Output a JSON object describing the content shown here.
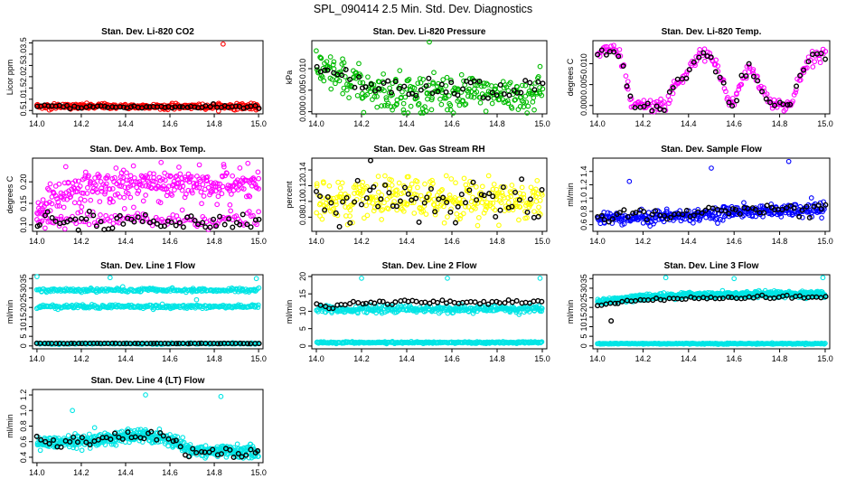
{
  "figure_title": "SPL_090414  2.5 Min. Std. Dev. Diagnostics",
  "colors": {
    "red": "#ff0000",
    "green": "#00bb00",
    "magenta": "#ff00ff",
    "yellow": "#ffff00",
    "blue": "#0000ff",
    "cyan": "#00e5e5",
    "black": "#000000"
  },
  "chart_data": [
    {
      "type": "scatter",
      "title": "Stan. Dev. Li-820 CO2",
      "ylabel": "Licor ppm",
      "xlim": [
        13.98,
        15.02
      ],
      "ylim": [
        0.35,
        3.6
      ],
      "xticks": [
        14.0,
        14.2,
        14.4,
        14.6,
        14.8,
        15.0
      ],
      "xticklabels": [
        "14.0",
        "14.2",
        "14.4",
        "14.6",
        "14.8",
        "15.0"
      ],
      "yticks": [
        0.5,
        1.0,
        1.5,
        2.0,
        2.5,
        3.0,
        3.5
      ],
      "yticklabels": [
        "0.5",
        "1.0",
        "1.5",
        "2.0",
        "2.5",
        "3.0",
        "3.5"
      ],
      "series": [
        {
          "name": "all",
          "color": "red",
          "n": 320,
          "bands": [
            {
              "mean": 0.68,
              "sd": 0.06
            }
          ],
          "outliers": [
            [
              14.84,
              3.45
            ]
          ]
        },
        {
          "name": "selected",
          "color": "black",
          "n": 60,
          "bands": [
            {
              "mean": 0.66,
              "sd": 0.04
            }
          ]
        }
      ]
    },
    {
      "type": "scatter",
      "title": "Stan. Dev. Li-820 Pressure",
      "ylabel": "kPa",
      "xlim": [
        13.98,
        15.02
      ],
      "ylim": [
        -0.0005,
        0.0165
      ],
      "xticks": [
        14.0,
        14.2,
        14.4,
        14.6,
        14.8,
        15.0
      ],
      "xticklabels": [
        "14.0",
        "14.2",
        "14.4",
        "14.6",
        "14.8",
        "15.0"
      ],
      "yticks": [
        0.0,
        0.005,
        0.01
      ],
      "yticklabels": [
        "0.000",
        "0.005",
        "0.010"
      ],
      "series": [
        {
          "name": "all",
          "color": "green",
          "n": 300,
          "curve": [
            [
              14.0,
              0.0095
            ],
            [
              14.1,
              0.008
            ],
            [
              14.2,
              0.0055
            ],
            [
              14.3,
              0.0045
            ],
            [
              14.4,
              0.0042
            ],
            [
              15.0,
              0.004
            ]
          ],
          "sd": 0.0022,
          "outliers": [
            [
              14.5,
              0.0162
            ],
            [
              14.02,
              0.0125
            ],
            [
              14.99,
              0.0105
            ]
          ]
        },
        {
          "name": "selected",
          "color": "black",
          "n": 55,
          "curve": [
            [
              14.0,
              0.0105
            ],
            [
              14.15,
              0.007
            ],
            [
              14.3,
              0.006
            ],
            [
              15.0,
              0.0055
            ]
          ],
          "sd": 0.0013
        }
      ]
    },
    {
      "type": "scatter",
      "title": "Stan. Dev. Li-820 Temp.",
      "ylabel": "degrees C",
      "xlim": [
        13.98,
        15.02
      ],
      "ylim": [
        -0.002,
        0.0155
      ],
      "xticks": [
        14.0,
        14.2,
        14.4,
        14.6,
        14.8,
        15.0
      ],
      "xticklabels": [
        "14.0",
        "14.2",
        "14.4",
        "14.6",
        "14.8",
        "15.0"
      ],
      "yticks": [
        0.0,
        0.005,
        0.01
      ],
      "yticklabels": [
        "0.000",
        "0.005",
        "0.010"
      ],
      "series": [
        {
          "name": "all",
          "color": "magenta",
          "n": 200,
          "curve": [
            [
              14.0,
              0.0125
            ],
            [
              14.08,
              0.014
            ],
            [
              14.12,
              0.008
            ],
            [
              14.15,
              0.0
            ],
            [
              14.3,
              0.0
            ],
            [
              14.33,
              0.004
            ],
            [
              14.4,
              0.008
            ],
            [
              14.45,
              0.013
            ],
            [
              14.5,
              0.0115
            ],
            [
              14.55,
              0.006
            ],
            [
              14.58,
              0.0
            ],
            [
              14.6,
              0.0
            ],
            [
              14.63,
              0.006
            ],
            [
              14.67,
              0.009
            ],
            [
              14.72,
              0.0035
            ],
            [
              14.77,
              0.0
            ],
            [
              14.85,
              0.0
            ],
            [
              14.88,
              0.006
            ],
            [
              14.93,
              0.011
            ],
            [
              15.0,
              0.0125
            ]
          ],
          "sd": 0.0008
        },
        {
          "name": "selected",
          "color": "black",
          "n": 55,
          "curve": [
            [
              14.0,
              0.0125
            ],
            [
              14.08,
              0.013
            ],
            [
              14.12,
              0.008
            ],
            [
              14.15,
              0.0
            ],
            [
              14.3,
              0.0
            ],
            [
              14.33,
              0.004
            ],
            [
              14.4,
              0.008
            ],
            [
              14.45,
              0.0125
            ],
            [
              14.5,
              0.011
            ],
            [
              14.55,
              0.006
            ],
            [
              14.58,
              0.0
            ],
            [
              14.6,
              0.0
            ],
            [
              14.63,
              0.006
            ],
            [
              14.67,
              0.009
            ],
            [
              14.72,
              0.0035
            ],
            [
              14.77,
              0.0
            ],
            [
              14.85,
              0.0
            ],
            [
              14.88,
              0.006
            ],
            [
              14.93,
              0.011
            ],
            [
              15.0,
              0.0125
            ]
          ],
          "sd": 0.0006
        }
      ]
    },
    {
      "type": "scatter",
      "title": "Stan. Dev. Amb. Box Temp.",
      "ylabel": "degrees C",
      "xlim": [
        13.98,
        15.02
      ],
      "ylim": [
        0.085,
        0.255
      ],
      "xticks": [
        14.0,
        14.2,
        14.4,
        14.6,
        14.8,
        15.0
      ],
      "xticklabels": [
        "14.0",
        "14.2",
        "14.4",
        "14.6",
        "14.8",
        "15.0"
      ],
      "yticks": [
        0.1,
        0.15,
        0.2
      ],
      "yticklabels": [
        "0.10",
        "0.15",
        "0.20"
      ],
      "series": [
        {
          "name": "all",
          "color": "magenta",
          "n": 320,
          "curve": [
            [
              14.0,
              0.14
            ],
            [
              14.1,
              0.165
            ],
            [
              14.25,
              0.19
            ],
            [
              14.5,
              0.195
            ],
            [
              15.0,
              0.19
            ]
          ],
          "sd": 0.018,
          "low_band": {
            "mean": 0.112,
            "sd": 0.01,
            "n": 120
          },
          "outliers": [
            [
              14.56,
              0.245
            ],
            [
              14.13,
              0.235
            ]
          ]
        },
        {
          "name": "selected",
          "color": "black",
          "n": 60,
          "bands": [
            {
              "mean": 0.108,
              "sd": 0.009
            }
          ]
        }
      ]
    },
    {
      "type": "scatter",
      "title": "Stan. Dev. Gas Stream RH",
      "ylabel": "percent",
      "xlim": [
        13.98,
        15.02
      ],
      "ylim": [
        0.062,
        0.155
      ],
      "xticks": [
        14.0,
        14.2,
        14.4,
        14.6,
        14.8,
        15.0
      ],
      "xticklabels": [
        "14.0",
        "14.2",
        "14.4",
        "14.6",
        "14.8",
        "15.0"
      ],
      "yticks": [
        0.08,
        0.1,
        0.12,
        0.14
      ],
      "yticklabels": [
        "0.08",
        "0.10",
        "0.12",
        "0.14"
      ],
      "series": [
        {
          "name": "all",
          "color": "yellow",
          "n": 320,
          "bands": [
            {
              "mean": 0.103,
              "sd": 0.014
            }
          ]
        },
        {
          "name": "selected",
          "color": "black",
          "n": 60,
          "bands": [
            {
              "mean": 0.101,
              "sd": 0.013
            }
          ],
          "outliers": [
            [
              14.24,
              0.152
            ]
          ]
        }
      ]
    },
    {
      "type": "scatter",
      "title": "Stan. Dev. Sample Flow",
      "ylabel": "ml/min",
      "xlim": [
        13.98,
        15.02
      ],
      "ylim": [
        0.5,
        1.6
      ],
      "xticks": [
        14.0,
        14.2,
        14.4,
        14.6,
        14.8,
        15.0
      ],
      "xticklabels": [
        "14.0",
        "14.2",
        "14.4",
        "14.6",
        "14.8",
        "15.0"
      ],
      "yticks": [
        0.6,
        0.8,
        1.0,
        1.2,
        1.4
      ],
      "yticklabels": [
        "0.6",
        "0.8",
        "1.0",
        "1.2",
        "1.4"
      ],
      "series": [
        {
          "name": "all",
          "color": "blue",
          "n": 320,
          "curve": [
            [
              14.0,
              0.7
            ],
            [
              14.2,
              0.71
            ],
            [
              14.4,
              0.74
            ],
            [
              14.6,
              0.79
            ],
            [
              15.0,
              0.83
            ]
          ],
          "sd": 0.05,
          "outliers": [
            [
              14.5,
              1.45
            ],
            [
              14.84,
              1.55
            ],
            [
              14.14,
              1.25
            ]
          ]
        },
        {
          "name": "selected",
          "color": "black",
          "n": 60,
          "curve": [
            [
              14.0,
              0.72
            ],
            [
              14.2,
              0.74
            ],
            [
              14.4,
              0.77
            ],
            [
              14.6,
              0.82
            ],
            [
              15.0,
              0.86
            ]
          ],
          "sd": 0.05
        }
      ]
    },
    {
      "type": "scatter",
      "title": "Stan. Dev. Line 1 Flow",
      "ylabel": "ml/min",
      "xlim": [
        13.98,
        15.02
      ],
      "ylim": [
        -1.5,
        37
      ],
      "xticks": [
        14.0,
        14.2,
        14.4,
        14.6,
        14.8,
        15.0
      ],
      "xticklabels": [
        "14.0",
        "14.2",
        "14.4",
        "14.6",
        "14.8",
        "15.0"
      ],
      "yticks": [
        0,
        5,
        10,
        15,
        20,
        25,
        30,
        35
      ],
      "yticklabels": [
        "0",
        "5",
        "10",
        "15",
        "20",
        "25",
        "30",
        "35"
      ],
      "series": [
        {
          "name": "all",
          "color": "cyan",
          "n": 700,
          "bands": [
            {
              "mean": 29,
              "sd": 0.5
            },
            {
              "mean": 20.5,
              "sd": 0.5
            },
            {
              "mean": 1.2,
              "sd": 0.15
            }
          ],
          "outliers": [
            [
              14.0,
              36
            ],
            [
              14.33,
              35.5
            ],
            [
              14.99,
              35
            ],
            [
              14.72,
              24
            ]
          ]
        },
        {
          "name": "selected",
          "color": "black",
          "n": 60,
          "bands": [
            {
              "mean": 1.3,
              "sd": 0.05
            }
          ]
        }
      ]
    },
    {
      "type": "scatter",
      "title": "Stan. Dev. Line 2 Flow",
      "ylabel": "ml/min",
      "xlim": [
        13.98,
        15.02
      ],
      "ylim": [
        -0.8,
        20.5
      ],
      "xticks": [
        14.0,
        14.2,
        14.4,
        14.6,
        14.8,
        15.0
      ],
      "xticklabels": [
        "14.0",
        "14.2",
        "14.4",
        "14.6",
        "14.8",
        "15.0"
      ],
      "yticks": [
        0,
        5,
        10,
        15,
        20
      ],
      "yticklabels": [
        "0",
        "5",
        "10",
        "15",
        "20"
      ],
      "series": [
        {
          "name": "all",
          "color": "cyan",
          "n": 650,
          "bands": [
            {
              "mean": 10.6,
              "sd": 0.5
            },
            {
              "mean": 1.0,
              "sd": 0.12
            }
          ],
          "outliers": [
            [
              14.2,
              19.5
            ],
            [
              14.58,
              19.5
            ],
            [
              14.99,
              19.5
            ]
          ]
        },
        {
          "name": "selected",
          "color": "black",
          "n": 55,
          "curve": [
            [
              14.02,
              11.5
            ],
            [
              14.1,
              11.5
            ],
            [
              14.15,
              12.5
            ],
            [
              15.0,
              12.8
            ]
          ],
          "sd": 0.3
        }
      ]
    },
    {
      "type": "scatter",
      "title": "Stan. Dev. Line 3 Flow",
      "ylabel": "ml/min",
      "xlim": [
        13.98,
        15.02
      ],
      "ylim": [
        -1.5,
        37
      ],
      "xticks": [
        14.0,
        14.2,
        14.4,
        14.6,
        14.8,
        15.0
      ],
      "xticklabels": [
        "14.0",
        "14.2",
        "14.4",
        "14.6",
        "14.8",
        "15.0"
      ],
      "yticks": [
        0,
        5,
        10,
        15,
        20,
        25,
        30,
        35
      ],
      "yticklabels": [
        "0",
        "5",
        "10",
        "15",
        "20",
        "25",
        "30",
        "35"
      ],
      "series": [
        {
          "name": "all",
          "color": "cyan",
          "n": 650,
          "curve": [
            [
              14.0,
              23
            ],
            [
              14.1,
              24
            ],
            [
              14.2,
              25.5
            ],
            [
              14.4,
              26.5
            ],
            [
              15.0,
              27
            ]
          ],
          "sd": 0.7,
          "low_band": {
            "mean": 1.2,
            "sd": 0.15,
            "n": 250
          },
          "outliers": [
            [
              14.3,
              35.5
            ],
            [
              14.6,
              35
            ],
            [
              14.99,
              35.5
            ]
          ]
        },
        {
          "name": "selected",
          "color": "black",
          "n": 55,
          "curve": [
            [
              14.0,
              21
            ],
            [
              14.1,
              23
            ],
            [
              14.2,
              24
            ],
            [
              14.5,
              25
            ],
            [
              15.0,
              25.5
            ]
          ],
          "sd": 0.4,
          "outliers": [
            [
              14.06,
              13
            ]
          ]
        }
      ]
    },
    {
      "type": "scatter",
      "title": "Stan. Dev. Line 4 (LT) Flow",
      "ylabel": "ml/min",
      "xlim": [
        13.98,
        15.02
      ],
      "ylim": [
        0.33,
        1.27
      ],
      "xticks": [
        14.0,
        14.2,
        14.4,
        14.6,
        14.8,
        15.0
      ],
      "xticklabels": [
        "14.0",
        "14.2",
        "14.4",
        "14.6",
        "14.8",
        "15.0"
      ],
      "yticks": [
        0.4,
        0.6,
        0.8,
        1.0,
        1.2
      ],
      "yticklabels": [
        "0.4",
        "0.6",
        "0.8",
        "1.0",
        "1.2"
      ],
      "series": [
        {
          "name": "all",
          "color": "cyan",
          "n": 500,
          "curve": [
            [
              14.0,
              0.58
            ],
            [
              14.2,
              0.6
            ],
            [
              14.35,
              0.65
            ],
            [
              14.5,
              0.68
            ],
            [
              14.6,
              0.62
            ],
            [
              14.67,
              0.5
            ],
            [
              14.75,
              0.48
            ],
            [
              15.0,
              0.47
            ]
          ],
          "sd": 0.04,
          "outliers": [
            [
              14.49,
              1.2
            ],
            [
              14.83,
              1.18
            ],
            [
              14.16,
              1.0
            ],
            [
              14.26,
              0.78
            ]
          ]
        },
        {
          "name": "selected",
          "color": "black",
          "n": 55,
          "curve": [
            [
              14.0,
              0.58
            ],
            [
              14.2,
              0.6
            ],
            [
              14.35,
              0.65
            ],
            [
              14.5,
              0.68
            ],
            [
              14.6,
              0.62
            ],
            [
              14.67,
              0.5
            ],
            [
              14.75,
              0.48
            ],
            [
              15.0,
              0.47
            ]
          ],
          "sd": 0.04
        }
      ]
    }
  ]
}
